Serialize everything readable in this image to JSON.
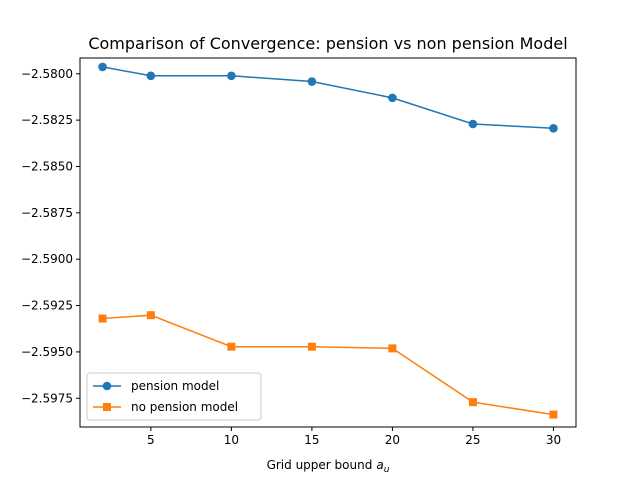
{
  "chart_data": {
    "type": "line",
    "title": "Comparison of Convergence: pension vs non pension Model",
    "xlabel": "Grid upper bound",
    "xlabel_symbol": "a",
    "xlabel_subscript": "u",
    "ylabel": "",
    "x": [
      2,
      5,
      10,
      15,
      20,
      25,
      30
    ],
    "xlim": [
      0.6,
      31.4
    ],
    "ylim": [
      -2.59905,
      -2.57915
    ],
    "xticks": [
      5,
      10,
      15,
      20,
      25,
      30
    ],
    "xtick_labels": [
      "5",
      "10",
      "15",
      "20",
      "25",
      "30"
    ],
    "yticks": [
      -2.58,
      -2.5825,
      -2.585,
      -2.5875,
      -2.59,
      -2.5925,
      -2.595,
      -2.5975
    ],
    "ytick_labels": [
      "−2.5800",
      "−2.5825",
      "−2.5850",
      "−2.5875",
      "−2.5900",
      "−2.5925",
      "−2.5950",
      "−2.5975"
    ],
    "grid": false,
    "legend_position": "lower-left",
    "series": [
      {
        "name": "pension model",
        "color": "#1f77b4",
        "marker": "circle",
        "values": [
          -2.57963,
          -2.58011,
          -2.58011,
          -2.58042,
          -2.5813,
          -2.58271,
          -2.58294
        ]
      },
      {
        "name": "no pension model",
        "color": "#ff7f0e",
        "marker": "square",
        "values": [
          -2.5932,
          -2.59302,
          -2.59472,
          -2.59472,
          -2.59481,
          -2.59771,
          -2.59838
        ]
      }
    ]
  }
}
